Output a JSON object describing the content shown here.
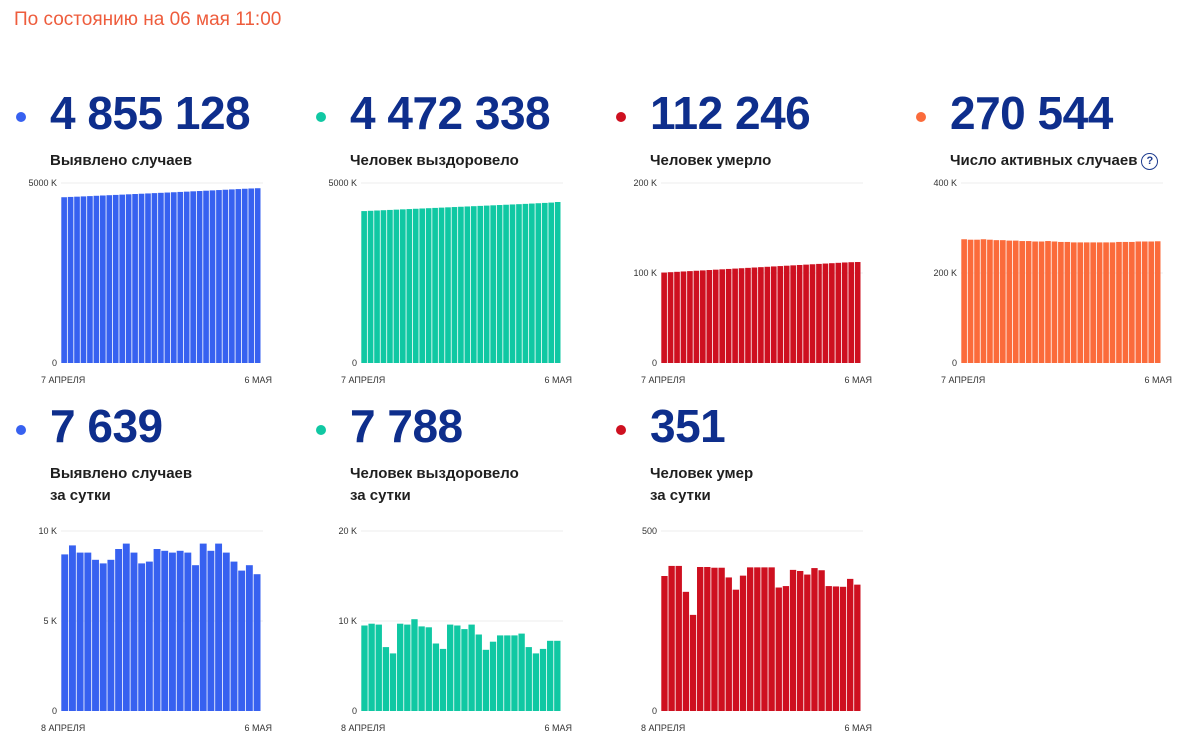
{
  "status_text": "По состоянию на 06 мая 11:00",
  "colors": {
    "blue": "#3761f0",
    "teal": "#10c8a3",
    "red": "#ce1020",
    "orange": "#fb6b3b",
    "status": "#ee5c3c",
    "number": "#0e2e8c"
  },
  "cards": [
    {
      "number": "4 855 128",
      "label": [
        "Выявлено случаев"
      ],
      "help": "",
      "color_key": "blue"
    },
    {
      "number": "4 472 338",
      "label": [
        "Человек выздоровело"
      ],
      "help": "",
      "color_key": "teal"
    },
    {
      "number": "112 246",
      "label": [
        "Человек умерло"
      ],
      "help": "",
      "color_key": "red"
    },
    {
      "number": "270 544",
      "label": [
        "Число активных случаев"
      ],
      "help": "?",
      "color_key": "orange"
    },
    {
      "number": "7 639",
      "label": [
        "Выявлено случаев",
        "за сутки"
      ],
      "help": "",
      "color_key": "blue"
    },
    {
      "number": "7 788",
      "label": [
        "Человек выздоровело",
        "за сутки"
      ],
      "help": "",
      "color_key": "teal"
    },
    {
      "number": "351",
      "label": [
        "Человек умер",
        "за сутки"
      ],
      "help": "",
      "color_key": "red"
    }
  ],
  "chart_data": [
    {
      "type": "bar",
      "title": "Выявлено случаев",
      "x_start_label": "7 АПРЕЛЯ",
      "x_end_label": "6 МАЯ",
      "ylim": [
        0,
        5000
      ],
      "yticks": [
        0,
        5000
      ],
      "ytick_labels": [
        "0",
        "5000 K"
      ],
      "gridlines": [
        5000
      ],
      "values": [
        4605,
        4613,
        4620,
        4628,
        4636,
        4645,
        4653,
        4661,
        4669,
        4677,
        4686,
        4694,
        4702,
        4710,
        4719,
        4727,
        4735,
        4743,
        4752,
        4760,
        4769,
        4777,
        4786,
        4795,
        4804,
        4813,
        4822,
        4831,
        4840,
        4848,
        4855
      ]
    },
    {
      "type": "bar",
      "title": "Человек выздоровело",
      "x_start_label": "7 АПРЕЛЯ",
      "x_end_label": "6 МАЯ",
      "ylim": [
        0,
        5000
      ],
      "yticks": [
        0,
        5000
      ],
      "ytick_labels": [
        "0",
        "5000 K"
      ],
      "gridlines": [
        5000
      ],
      "values": [
        4220,
        4228,
        4236,
        4244,
        4252,
        4260,
        4268,
        4276,
        4284,
        4292,
        4300,
        4308,
        4316,
        4324,
        4332,
        4340,
        4348,
        4356,
        4364,
        4372,
        4380,
        4388,
        4396,
        4404,
        4412,
        4420,
        4429,
        4438,
        4447,
        4456,
        4472
      ]
    },
    {
      "type": "bar",
      "title": "Человек умерло",
      "x_start_label": "7 АПРЕЛЯ",
      "x_end_label": "6 МАЯ",
      "ylim": [
        0,
        200
      ],
      "yticks": [
        0,
        100,
        200
      ],
      "ytick_labels": [
        "0",
        "100 K",
        "200 K"
      ],
      "gridlines": [
        100,
        200
      ],
      "values": [
        100.5,
        100.9,
        101.3,
        101.7,
        102.1,
        102.5,
        102.9,
        103.3,
        103.7,
        104.1,
        104.5,
        104.9,
        105.3,
        105.7,
        106.1,
        106.5,
        106.9,
        107.3,
        107.7,
        108.1,
        108.5,
        108.9,
        109.3,
        109.7,
        110.1,
        110.5,
        110.9,
        111.3,
        111.7,
        112.0,
        112.2
      ]
    },
    {
      "type": "bar",
      "title": "Число активных случаев",
      "x_start_label": "7 АПРЕЛЯ",
      "x_end_label": "6 МАЯ",
      "ylim": [
        0,
        400
      ],
      "yticks": [
        0,
        200,
        400
      ],
      "ytick_labels": [
        "0",
        "200 K",
        "400 K"
      ],
      "gridlines": [
        200,
        400
      ],
      "values": [
        275,
        274,
        274,
        275,
        274,
        273,
        273,
        272,
        272,
        271,
        271,
        270,
        270,
        271,
        270,
        269,
        269,
        268,
        268,
        268,
        268,
        268,
        268,
        268,
        269,
        269,
        269,
        270,
        270,
        270,
        270.5
      ]
    },
    {
      "type": "bar",
      "title": "Выявлено случаев за сутки",
      "x_start_label": "8 АПРЕЛЯ",
      "x_end_label": "6 МАЯ",
      "ylim": [
        0,
        10
      ],
      "yticks": [
        0,
        5,
        10
      ],
      "ytick_labels": [
        "0",
        "5 K",
        "10 K"
      ],
      "gridlines": [
        5,
        10
      ],
      "values": [
        8.7,
        9.2,
        8.8,
        8.8,
        8.4,
        8.2,
        8.4,
        9.0,
        9.3,
        8.8,
        8.2,
        8.3,
        9.0,
        8.9,
        8.8,
        8.9,
        8.8,
        8.1,
        9.3,
        8.9,
        9.3,
        8.8,
        8.3,
        7.8,
        8.1,
        7.6
      ]
    },
    {
      "type": "bar",
      "title": "Человек выздоровело за сутки",
      "x_start_label": "8 АПРЕЛЯ",
      "x_end_label": "6 МАЯ",
      "ylim": [
        0,
        20
      ],
      "yticks": [
        0,
        10,
        20
      ],
      "ytick_labels": [
        "0",
        "10 K",
        "20 K"
      ],
      "gridlines": [
        10,
        20
      ],
      "values": [
        9.5,
        9.7,
        9.6,
        7.1,
        6.4,
        9.7,
        9.6,
        10.2,
        9.4,
        9.3,
        7.5,
        6.9,
        9.6,
        9.5,
        9.1,
        9.6,
        8.5,
        6.8,
        7.7,
        8.4,
        8.4,
        8.4,
        8.6,
        7.1,
        6.4,
        6.9,
        7.8,
        7.8
      ]
    },
    {
      "type": "bar",
      "title": "Человек умер за сутки",
      "x_start_label": "8 АПРЕЛЯ",
      "x_end_label": "6 МАЯ",
      "ylim": [
        0,
        500
      ],
      "yticks": [
        0,
        500
      ],
      "ytick_labels": [
        "0",
        "500"
      ],
      "gridlines": [
        500
      ],
      "values": [
        375,
        403,
        403,
        331,
        267,
        400,
        400,
        398,
        398,
        371,
        337,
        376,
        399,
        399,
        399,
        399,
        343,
        347,
        392,
        389,
        379,
        397,
        391,
        347,
        346,
        345,
        367,
        351
      ]
    }
  ]
}
